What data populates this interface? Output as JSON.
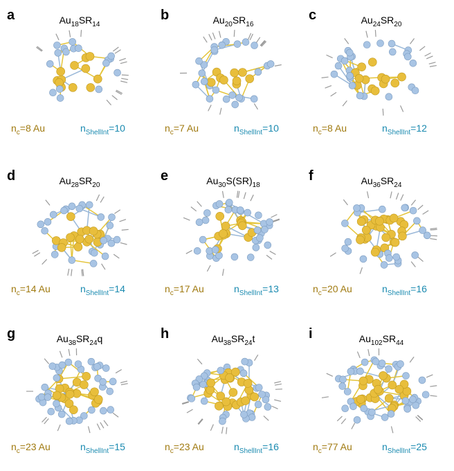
{
  "panels": [
    {
      "letter": "a",
      "formula": [
        "Au",
        "18",
        "SR",
        "14"
      ],
      "nc": [
        "n",
        "c",
        "=8 Au"
      ],
      "nshell": [
        "n",
        "ShellInt",
        "=10"
      ]
    },
    {
      "letter": "b",
      "formula": [
        "Au",
        "20",
        "SR",
        "16"
      ],
      "nc": [
        "n",
        "c",
        "=7 Au"
      ],
      "nshell": [
        "n",
        "ShellInt",
        "=10"
      ]
    },
    {
      "letter": "c",
      "formula": [
        "Au",
        "24",
        "SR",
        "20"
      ],
      "nc": [
        "n",
        "c",
        "=8 Au"
      ],
      "nshell": [
        "n",
        "ShellInt",
        "=12"
      ]
    },
    {
      "letter": "d",
      "formula": [
        "Au",
        "28",
        "SR",
        "20"
      ],
      "nc": [
        "n",
        "c",
        "=14 Au"
      ],
      "nshell": [
        "n",
        "ShellInt",
        "=14"
      ]
    },
    {
      "letter": "e",
      "formula": [
        "Au",
        "30",
        "S(SR)",
        "18"
      ],
      "nc": [
        "n",
        "c",
        "=17 Au"
      ],
      "nshell": [
        "n",
        "ShellInt",
        "=13"
      ]
    },
    {
      "letter": "f",
      "formula": [
        "Au",
        "36",
        "SR",
        "24"
      ],
      "nc": [
        "n",
        "c",
        "=20 Au"
      ],
      "nshell": [
        "n",
        "ShellInt",
        "=16"
      ]
    },
    {
      "letter": "g",
      "formula": [
        "Au",
        "38",
        "SR",
        "24",
        "q"
      ],
      "nc": [
        "n",
        "c",
        "=23 Au"
      ],
      "nshell": [
        "n",
        "ShellInt",
        "=15"
      ]
    },
    {
      "letter": "h",
      "formula": [
        "Au",
        "38",
        "SR",
        "24",
        "t"
      ],
      "nc": [
        "n",
        "c",
        "=23 Au"
      ],
      "nshell": [
        "n",
        "ShellInt",
        "=16"
      ]
    },
    {
      "letter": "i",
      "formula": [
        "Au",
        "102",
        "SR",
        "44"
      ],
      "nc": [
        "n",
        "c",
        "=77 Au"
      ],
      "nshell": [
        "n",
        "ShellInt",
        "=25"
      ]
    }
  ]
}
